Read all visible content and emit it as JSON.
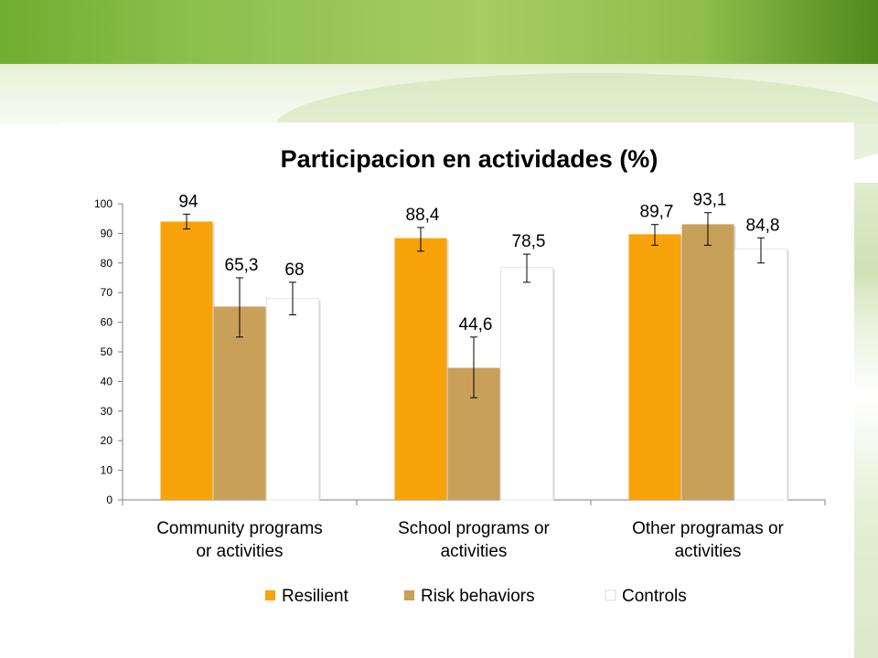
{
  "chart_data": {
    "type": "bar",
    "title": "Participacion en actividades (%)",
    "xlabel": "",
    "ylabel": "",
    "ylim": [
      0,
      100
    ],
    "yticks": [
      0,
      10,
      20,
      30,
      40,
      50,
      60,
      70,
      80,
      90,
      100
    ],
    "grid": false,
    "legend_position": "bottom",
    "categories": [
      [
        "Community programs",
        "or activities"
      ],
      [
        "School programs or",
        "activities"
      ],
      [
        "Other programas or",
        "activities"
      ]
    ],
    "series": [
      {
        "name": "Resilient",
        "color": "#f8a30a",
        "values": [
          94,
          88.4,
          89.7
        ],
        "labels": [
          "94",
          "88,4",
          "89,7"
        ],
        "error": [
          [
            91.5,
            96.5
          ],
          [
            84,
            92
          ],
          [
            86,
            93
          ]
        ]
      },
      {
        "name": "Risk behaviors",
        "color": "#c9a05a",
        "values": [
          65.3,
          44.6,
          93.1
        ],
        "labels": [
          "65,3",
          "44,6",
          "93,1"
        ],
        "error": [
          [
            55,
            75
          ],
          [
            34.5,
            55
          ],
          [
            86,
            97
          ]
        ]
      },
      {
        "name": "Controls",
        "color": "#ffffff",
        "values": [
          68,
          78.5,
          84.8
        ],
        "labels": [
          "68",
          "78,5",
          "84,8"
        ],
        "error": [
          [
            62.5,
            73.5
          ],
          [
            73.5,
            83
          ],
          [
            80,
            88.5
          ]
        ]
      }
    ]
  }
}
